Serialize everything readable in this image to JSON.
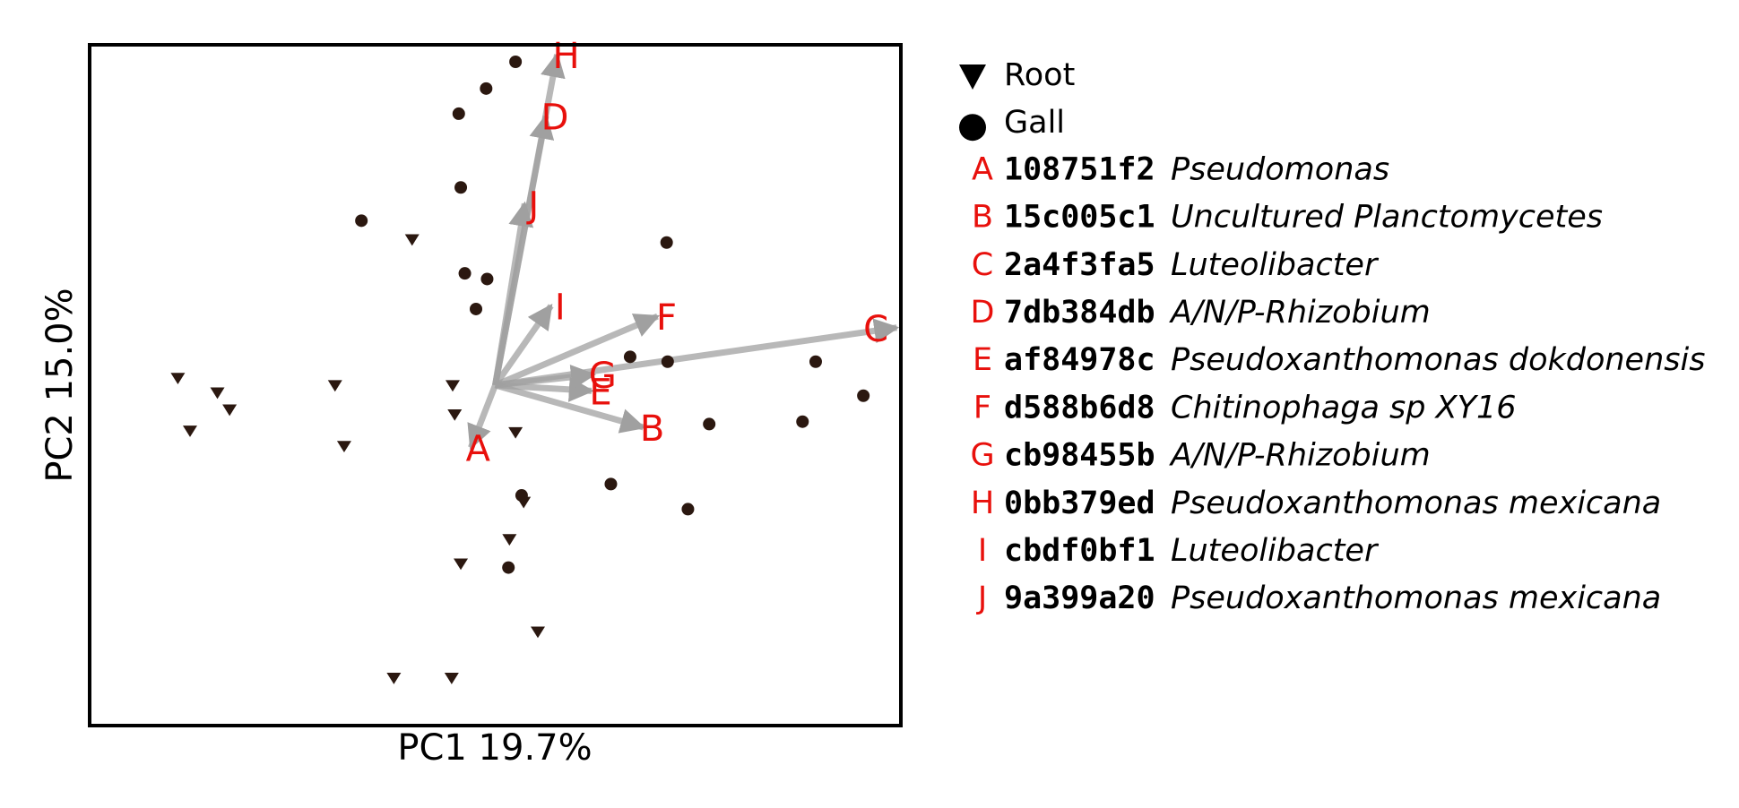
{
  "chart_data": {
    "type": "scatter",
    "xlabel": "PC1 19.7%",
    "ylabel": "PC2 15.0%",
    "xlim": [
      -4.0,
      4.0
    ],
    "ylim": [
      -4.2,
      4.2
    ],
    "grid": false,
    "ticks": false,
    "legend_position": "right",
    "colors": {
      "points": "#2b1810",
      "arrows": "#a0a0a0",
      "arrow_labels": "#e8100c",
      "frame": "#000000"
    },
    "series": [
      {
        "name": "Root",
        "marker": "triangle-down",
        "points": [
          [
            -3.13,
            0.09
          ],
          [
            -2.74,
            -0.09
          ],
          [
            -2.62,
            -0.3
          ],
          [
            -3.01,
            -0.56
          ],
          [
            -1.58,
            0.0
          ],
          [
            -1.49,
            -0.75
          ],
          [
            -0.42,
            0.0
          ],
          [
            -0.4,
            -0.36
          ],
          [
            0.2,
            -0.58
          ],
          [
            -0.82,
            1.8
          ],
          [
            0.28,
            -1.44
          ],
          [
            0.14,
            -1.9
          ],
          [
            -0.34,
            -2.2
          ],
          [
            0.42,
            -3.04
          ],
          [
            -1.0,
            -3.61
          ],
          [
            -0.43,
            -3.61
          ]
        ]
      },
      {
        "name": "Gall",
        "marker": "circle",
        "points": [
          [
            0.2,
            3.99
          ],
          [
            -0.09,
            3.66
          ],
          [
            -0.36,
            3.35
          ],
          [
            -0.34,
            2.44
          ],
          [
            -1.32,
            2.03
          ],
          [
            -0.3,
            1.38
          ],
          [
            -0.08,
            1.31
          ],
          [
            -0.19,
            0.94
          ],
          [
            1.69,
            1.76
          ],
          [
            1.33,
            0.35
          ],
          [
            1.7,
            0.29
          ],
          [
            3.16,
            0.29
          ],
          [
            3.63,
            -0.13
          ],
          [
            3.03,
            -0.45
          ],
          [
            2.11,
            -0.48
          ],
          [
            1.14,
            -1.22
          ],
          [
            1.9,
            -1.53
          ],
          [
            0.26,
            -1.36
          ],
          [
            0.13,
            -2.25
          ]
        ]
      }
    ],
    "loadings": [
      {
        "label": "A",
        "x": -0.24,
        "y": -0.77,
        "id": "108751f2",
        "taxon": "Pseudomonas"
      },
      {
        "label": "B",
        "x": 1.46,
        "y": -0.52,
        "id": "15c005c1",
        "taxon": "Uncultured Planctomycetes"
      },
      {
        "label": "C",
        "x": 3.96,
        "y": 0.71,
        "id": "2a4f3fa5",
        "taxon": "Luteolibacter"
      },
      {
        "label": "D",
        "x": 0.5,
        "y": 3.32,
        "id": "7db384db",
        "taxon": "A/N/P-Rhizobium"
      },
      {
        "label": "E",
        "x": 0.95,
        "y": -0.07,
        "id": "af84978c",
        "taxon": "Pseudoxanthomonas dokdonensis"
      },
      {
        "label": "F",
        "x": 1.6,
        "y": 0.85,
        "id": "d588b6d8",
        "taxon": "Chitinophaga sp XY16"
      },
      {
        "label": "G",
        "x": 0.97,
        "y": 0.13,
        "id": "cb98455b",
        "taxon": "A/N/P-Rhizobium"
      },
      {
        "label": "H",
        "x": 0.61,
        "y": 4.08,
        "id": "0bb379ed",
        "taxon": "Pseudoxanthomonas mexicana"
      },
      {
        "label": "I",
        "x": 0.55,
        "y": 0.98,
        "id": "cbdf0bf1",
        "taxon": "Luteolibacter"
      },
      {
        "label": "J",
        "x": 0.29,
        "y": 2.24,
        "id": "9a399a20",
        "taxon": "Pseudoxanthomonas mexicana"
      }
    ]
  }
}
